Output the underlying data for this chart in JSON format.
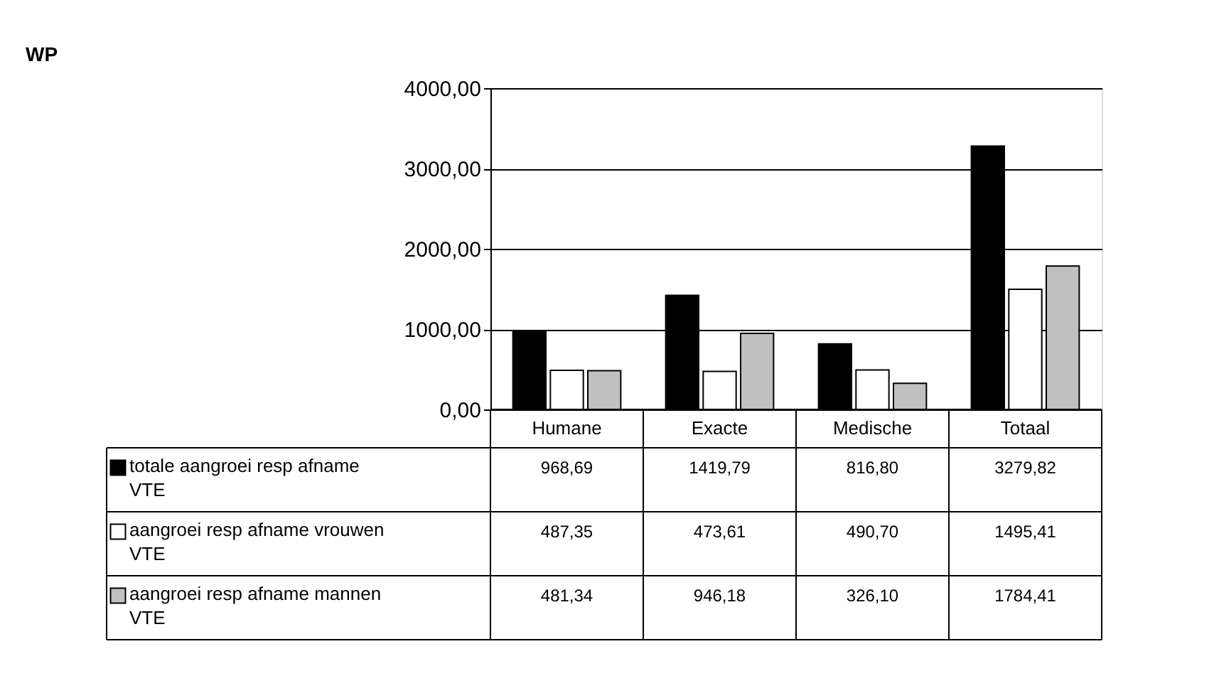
{
  "chart_data": {
    "type": "bar",
    "title": "WP",
    "categories": [
      "Humane",
      "Exacte",
      "Medische",
      "Totaal"
    ],
    "series": [
      {
        "name": "totale aangroei resp afname VTE",
        "color": "#000000",
        "values": [
          968.69,
          1419.79,
          816.8,
          3279.82
        ],
        "value_labels": [
          "968,69",
          "1419,79",
          "816,80",
          "3279,82"
        ]
      },
      {
        "name": "aangroei resp afname vrouwen VTE",
        "color": "#ffffff",
        "values": [
          487.35,
          473.61,
          490.7,
          1495.41
        ],
        "value_labels": [
          "487,35",
          "473,61",
          "490,70",
          "1495,41"
        ]
      },
      {
        "name": "aangroei resp afname mannen VTE",
        "color": "#c0c0c0",
        "values": [
          481.34,
          946.18,
          326.1,
          1784.41
        ],
        "value_labels": [
          "481,34",
          "946,18",
          "326,10",
          "1784,41"
        ]
      }
    ],
    "ylim": [
      0,
      4000
    ],
    "yticks": [
      {
        "value": 0,
        "label": "0,00"
      },
      {
        "value": 1000,
        "label": "1000,00"
      },
      {
        "value": 2000,
        "label": "2000,00"
      },
      {
        "value": 3000,
        "label": "3000,00"
      },
      {
        "value": 4000,
        "label": "4000,00"
      }
    ],
    "grid": "y",
    "legend": "bottom"
  }
}
